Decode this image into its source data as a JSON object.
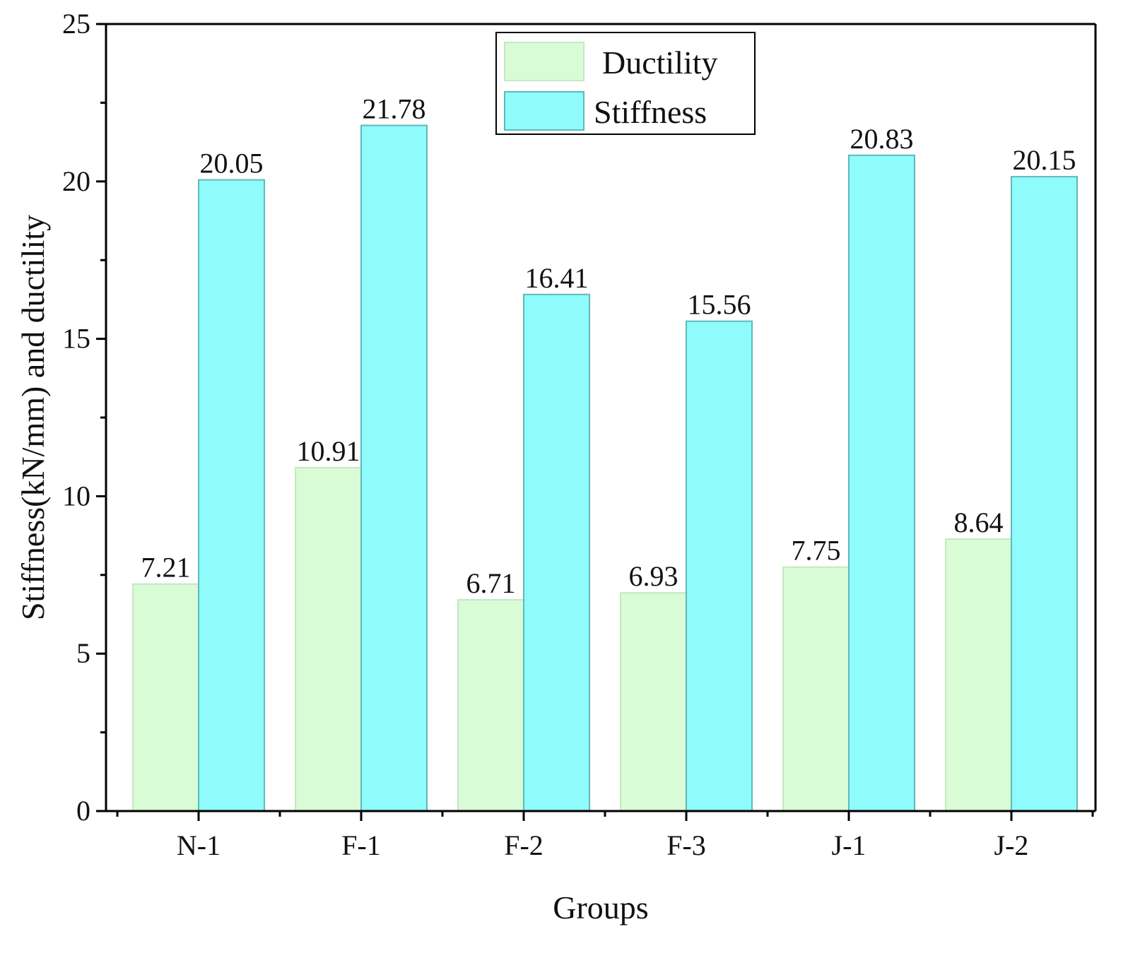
{
  "chart_data": {
    "type": "bar",
    "title": "",
    "xlabel": "Groups",
    "ylabel": "Stiffness(kN/mm) and ductility",
    "categories": [
      "N-1",
      "F-1",
      "F-2",
      "F-3",
      "J-1",
      "J-2"
    ],
    "series": [
      {
        "name": "Ductility",
        "values": [
          7.21,
          10.91,
          6.71,
          6.93,
          7.75,
          8.64
        ],
        "labels": [
          "7.21",
          "10.91",
          "6.71",
          "6.93",
          "7.75",
          "8.64"
        ],
        "color": "#d9fcd6"
      },
      {
        "name": "Stiffness",
        "values": [
          20.05,
          21.78,
          16.41,
          15.56,
          20.83,
          20.15
        ],
        "labels": [
          "20.05",
          "21.78",
          "16.41",
          "15.56",
          "20.83",
          "20.15"
        ],
        "color": "#8ffbfb"
      }
    ],
    "ylim": [
      0,
      25
    ],
    "yticks": [
      0,
      5,
      10,
      15,
      20,
      25
    ],
    "grid": false,
    "legend_position": "top-center"
  }
}
